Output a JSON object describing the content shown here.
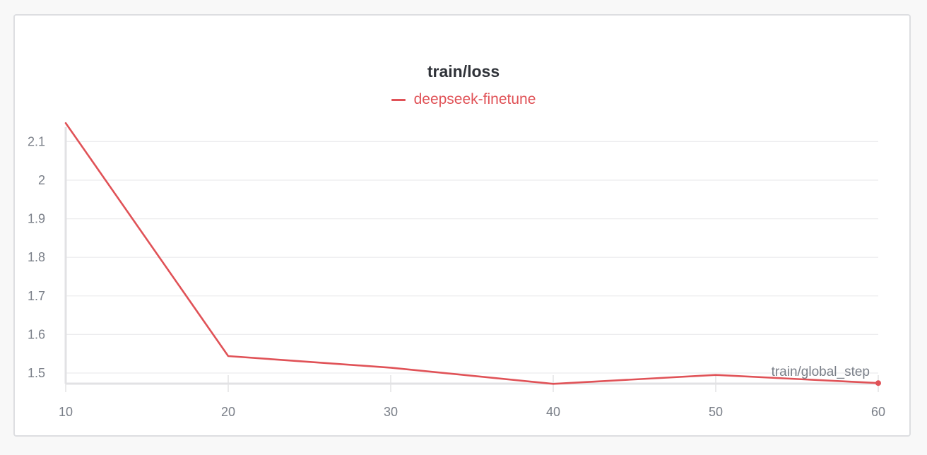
{
  "panel": {
    "title": "train/loss"
  },
  "chart_data": {
    "type": "line",
    "title": "train/loss",
    "xlabel": "train/global_step",
    "ylabel": "",
    "x_ticks": [
      "10",
      "20",
      "30",
      "40",
      "50",
      "60"
    ],
    "y_ticks": [
      "1.5",
      "1.6",
      "1.7",
      "1.8",
      "1.9",
      "2",
      "2.1"
    ],
    "xlim": [
      10,
      60
    ],
    "ylim": [
      1.47,
      2.15
    ],
    "grid": true,
    "legend_position": "top-center",
    "series": [
      {
        "name": "deepseek-finetune",
        "color": "#e05257",
        "x": [
          10,
          20,
          30,
          40,
          50,
          60
        ],
        "y": [
          2.148,
          1.544,
          1.514,
          1.472,
          1.495,
          1.474
        ]
      }
    ]
  }
}
